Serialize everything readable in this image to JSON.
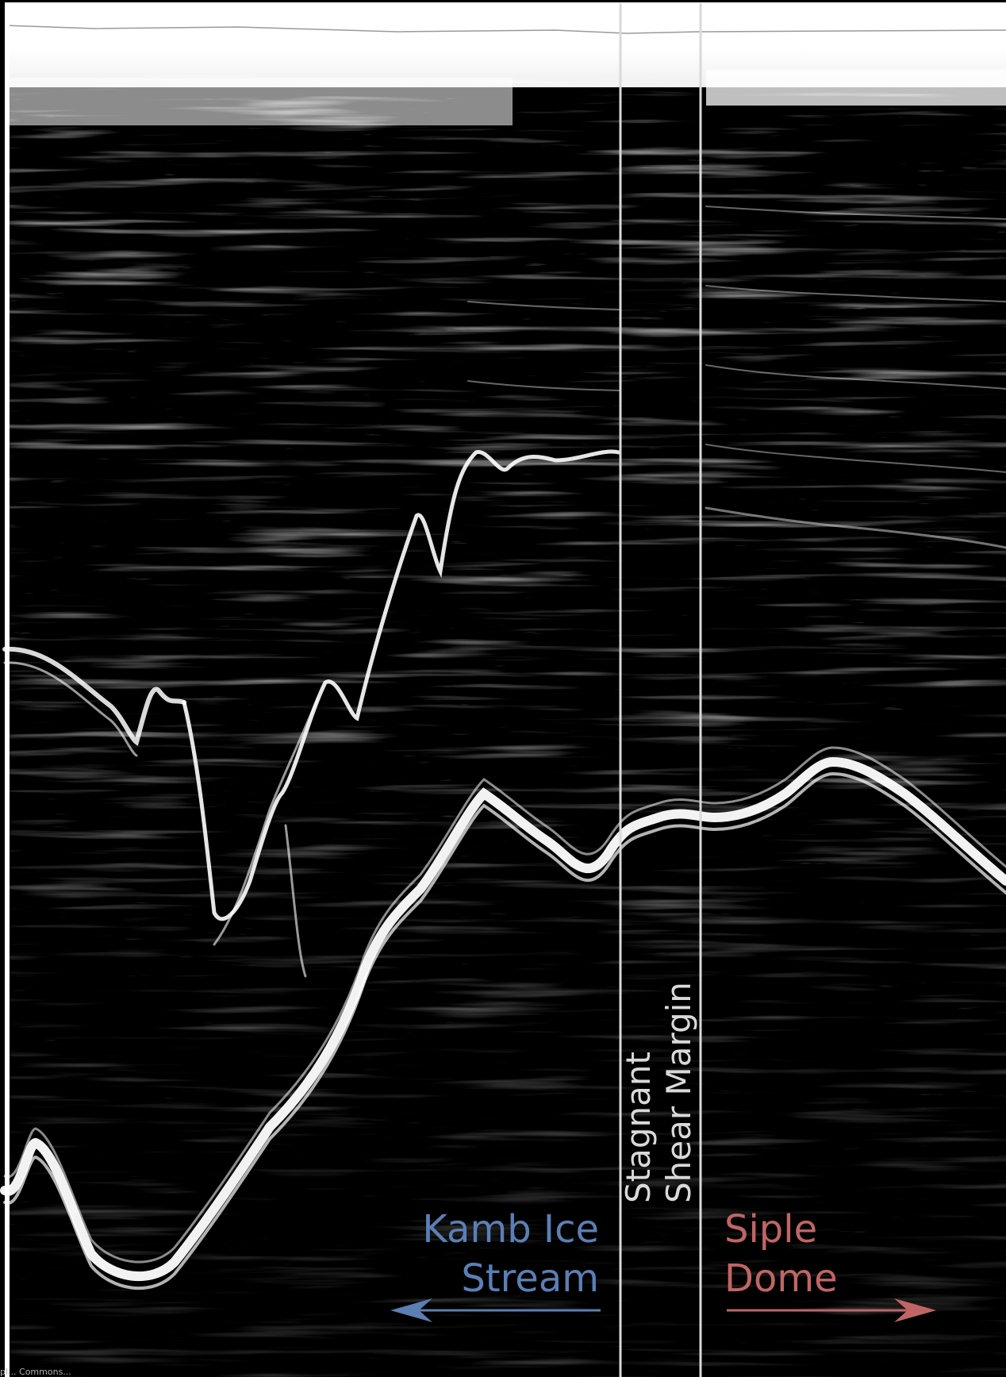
{
  "labels": {
    "kamb_line1": "Kamb Ice",
    "kamb_line2": "Stream",
    "siple_line1": "Siple",
    "siple_line2": "Dome",
    "stagnant": "Stagnant",
    "shear_margin": "Shear Margin",
    "credit": "pl... Commons..."
  },
  "colors": {
    "kamb": "#5b7fb5",
    "siple": "#c06565",
    "margin": "#d9d9d9",
    "background": "#000000"
  },
  "icons": {
    "left_arrow": "arrow-left-icon",
    "right_arrow": "arrow-right-icon"
  }
}
